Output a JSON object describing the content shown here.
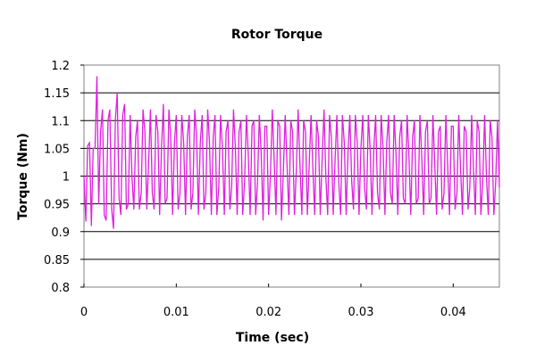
{
  "chart_data": {
    "type": "line",
    "title": "Rotor Torque",
    "xlabel": "Time (sec)",
    "ylabel": "Torque  (Nm)",
    "xlim": [
      0,
      0.045
    ],
    "ylim": [
      0.8,
      1.2
    ],
    "x_ticks": [
      "0",
      "0.01",
      "0.02",
      "0.03",
      "0.04"
    ],
    "x_tick_values": [
      0,
      0.01,
      0.02,
      0.03,
      0.04
    ],
    "y_ticks": [
      "0.8",
      "0.85",
      "0.9",
      "0.95",
      "1",
      "1.05",
      "1.1",
      "1.15",
      "1.2"
    ],
    "y_tick_values": [
      0.8,
      0.85,
      0.9,
      0.95,
      1.0,
      1.05,
      1.1,
      1.15,
      1.2
    ],
    "grid": "horizontal",
    "series_color": "#e01ee0",
    "series": [
      {
        "x": [
          0,
          0.0002,
          0.0004,
          0.0006,
          0.0008,
          0.001,
          0.0012,
          0.0014,
          0.0016,
          0.0018,
          0.002,
          0.0022,
          0.0024,
          0.0026,
          0.0028,
          0.003,
          0.0032,
          0.0034,
          0.0036,
          0.0038,
          0.004,
          0.0042,
          0.0044,
          0.0046,
          0.0048,
          0.005,
          0.0052,
          0.0054,
          0.0056,
          0.0058,
          0.006,
          0.0062,
          0.0064,
          0.0066,
          0.0068,
          0.007,
          0.0072,
          0.0074,
          0.0076,
          0.0078,
          0.008,
          0.0082,
          0.0084,
          0.0086,
          0.0088,
          0.009,
          0.0092,
          0.0094,
          0.0096,
          0.0098,
          0.01,
          0.0102,
          0.0104,
          0.0106,
          0.0108,
          0.011,
          0.0112,
          0.0114,
          0.0116,
          0.0118,
          0.012,
          0.0122,
          0.0124,
          0.0126,
          0.0128,
          0.013,
          0.0132,
          0.0134,
          0.0136,
          0.0138,
          0.014,
          0.0142,
          0.0144,
          0.0146,
          0.0148,
          0.015,
          0.0152,
          0.0154,
          0.0156,
          0.0158,
          0.016,
          0.0162,
          0.0164,
          0.0166,
          0.0168,
          0.017,
          0.0172,
          0.0174,
          0.0176,
          0.0178,
          0.018,
          0.0182,
          0.0184,
          0.0186,
          0.0188,
          0.019,
          0.0192,
          0.0194,
          0.0196,
          0.0198,
          0.02,
          0.0202,
          0.0204,
          0.0206,
          0.0208,
          0.021,
          0.0212,
          0.0214,
          0.0216,
          0.0218,
          0.022,
          0.0222,
          0.0224,
          0.0226,
          0.0228,
          0.023,
          0.0232,
          0.0234,
          0.0236,
          0.0238,
          0.024,
          0.0242,
          0.0244,
          0.0246,
          0.0248,
          0.025,
          0.0252,
          0.0254,
          0.0256,
          0.0258,
          0.026,
          0.0262,
          0.0264,
          0.0266,
          0.0268,
          0.027,
          0.0272,
          0.0274,
          0.0276,
          0.0278,
          0.028,
          0.0282,
          0.0284,
          0.0286,
          0.0288,
          0.029,
          0.0292,
          0.0294,
          0.0296,
          0.0298,
          0.03,
          0.0302,
          0.0304,
          0.0306,
          0.0308,
          0.031,
          0.0312,
          0.0314,
          0.0316,
          0.0318,
          0.032,
          0.0322,
          0.0324,
          0.0326,
          0.0328,
          0.033,
          0.0332,
          0.0334,
          0.0336,
          0.0338,
          0.034,
          0.0342,
          0.0344,
          0.0346,
          0.0348,
          0.035,
          0.0352,
          0.0354,
          0.0356,
          0.0358,
          0.036,
          0.0362,
          0.0364,
          0.0366,
          0.0368,
          0.037,
          0.0372,
          0.0374,
          0.0376,
          0.0378,
          0.038,
          0.0382,
          0.0384,
          0.0386,
          0.0388,
          0.039,
          0.0392,
          0.0394,
          0.0396,
          0.0398,
          0.04,
          0.0402,
          0.0404,
          0.0406,
          0.0408,
          0.041,
          0.0412,
          0.0414,
          0.0416,
          0.0418,
          0.042,
          0.0422,
          0.0424,
          0.0426,
          0.0428,
          0.043,
          0.0432,
          0.0434,
          0.0436,
          0.0438,
          0.044,
          0.0442,
          0.0444,
          0.0446,
          0.0448,
          0.045
        ],
        "y": [
          1.0,
          0.918,
          1.055,
          1.06,
          0.91,
          1.05,
          1.05,
          1.18,
          0.95,
          1.08,
          1.12,
          0.93,
          0.92,
          1.1,
          1.12,
          0.94,
          0.905,
          1.1,
          1.15,
          0.96,
          0.93,
          1.11,
          1.13,
          0.94,
          0.95,
          1.11,
          1.0,
          0.94,
          1.07,
          1.1,
          0.94,
          0.97,
          1.12,
          1.08,
          0.94,
          1.02,
          1.12,
          0.97,
          0.94,
          1.11,
          1.08,
          0.93,
          1.05,
          1.13,
          0.95,
          0.96,
          1.12,
          1.07,
          0.93,
          1.06,
          1.11,
          0.94,
          0.97,
          1.11,
          1.06,
          0.93,
          1.07,
          1.11,
          0.94,
          0.97,
          1.12,
          1.07,
          0.93,
          1.06,
          1.11,
          0.94,
          0.97,
          1.12,
          1.06,
          0.93,
          1.07,
          1.11,
          0.93,
          0.98,
          1.11,
          1.05,
          0.93,
          1.08,
          1.1,
          0.94,
          0.98,
          1.12,
          1.05,
          0.93,
          1.08,
          1.1,
          0.93,
          0.99,
          1.11,
          1.04,
          0.93,
          1.09,
          1.1,
          0.93,
          0.99,
          1.11,
          1.04,
          0.92,
          1.09,
          1.09,
          0.93,
          1.0,
          1.12,
          1.03,
          0.93,
          1.1,
          1.09,
          0.92,
          1.01,
          1.11,
          1.02,
          0.93,
          1.1,
          1.08,
          0.93,
          1.01,
          1.12,
          1.02,
          0.93,
          1.1,
          1.08,
          0.93,
          1.02,
          1.11,
          1.01,
          0.93,
          1.1,
          1.07,
          0.93,
          1.03,
          1.12,
          1.0,
          0.93,
          1.11,
          1.07,
          0.93,
          1.03,
          1.11,
          0.99,
          0.93,
          1.11,
          1.06,
          0.93,
          1.04,
          1.11,
          0.99,
          0.94,
          1.11,
          1.06,
          0.93,
          1.05,
          1.11,
          0.98,
          0.94,
          1.11,
          1.05,
          0.93,
          1.05,
          1.11,
          0.97,
          0.94,
          1.11,
          1.05,
          0.93,
          1.06,
          1.11,
          0.97,
          0.95,
          1.11,
          1.04,
          0.93,
          1.07,
          1.1,
          0.96,
          0.95,
          1.11,
          1.04,
          0.93,
          1.07,
          1.1,
          0.95,
          0.96,
          1.11,
          1.03,
          0.93,
          1.08,
          1.1,
          0.95,
          0.96,
          1.11,
          1.02,
          0.93,
          1.08,
          1.09,
          0.94,
          0.97,
          1.11,
          1.02,
          0.93,
          1.09,
          1.09,
          0.94,
          0.97,
          1.11,
          1.01,
          0.93,
          1.09,
          1.08,
          0.94,
          0.98,
          1.11,
          1.01,
          0.93,
          1.1,
          1.08,
          0.93,
          0.99,
          1.11,
          1.0,
          0.93,
          1.1,
          1.07,
          0.93,
          0.99,
          1.1,
          0.98
        ]
      }
    ]
  }
}
